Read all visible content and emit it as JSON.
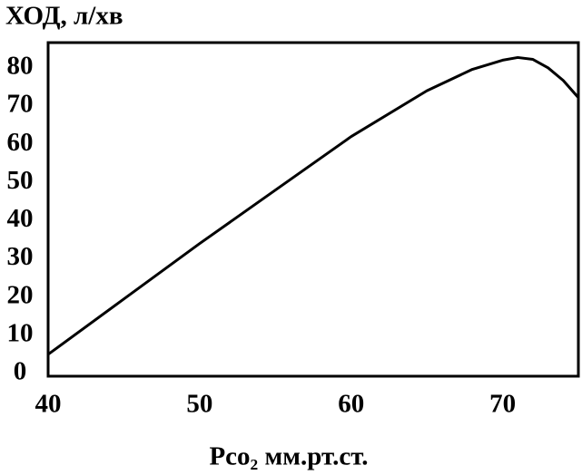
{
  "chart_data": {
    "type": "line",
    "title": "ХОД, л/хв",
    "x_label": "Pco₂ мм.рт.ст.",
    "x": [
      40,
      45,
      50,
      55,
      60,
      65,
      68,
      70,
      71,
      72,
      73,
      74,
      75
    ],
    "series": [
      {
        "color": "#000000",
        "values": [
          5,
          19.5,
          34,
          48,
          62,
          74,
          79.6,
          82,
          82.7,
          82.2,
          80,
          76.7,
          72.2
        ]
      }
    ],
    "xlim": [
      40,
      75
    ],
    "xticks": [
      40,
      50,
      60,
      70
    ],
    "ylim": [
      -0.7,
      86.6
    ],
    "yticks": [
      0,
      10,
      20,
      30,
      40,
      50,
      60,
      70,
      80
    ]
  }
}
